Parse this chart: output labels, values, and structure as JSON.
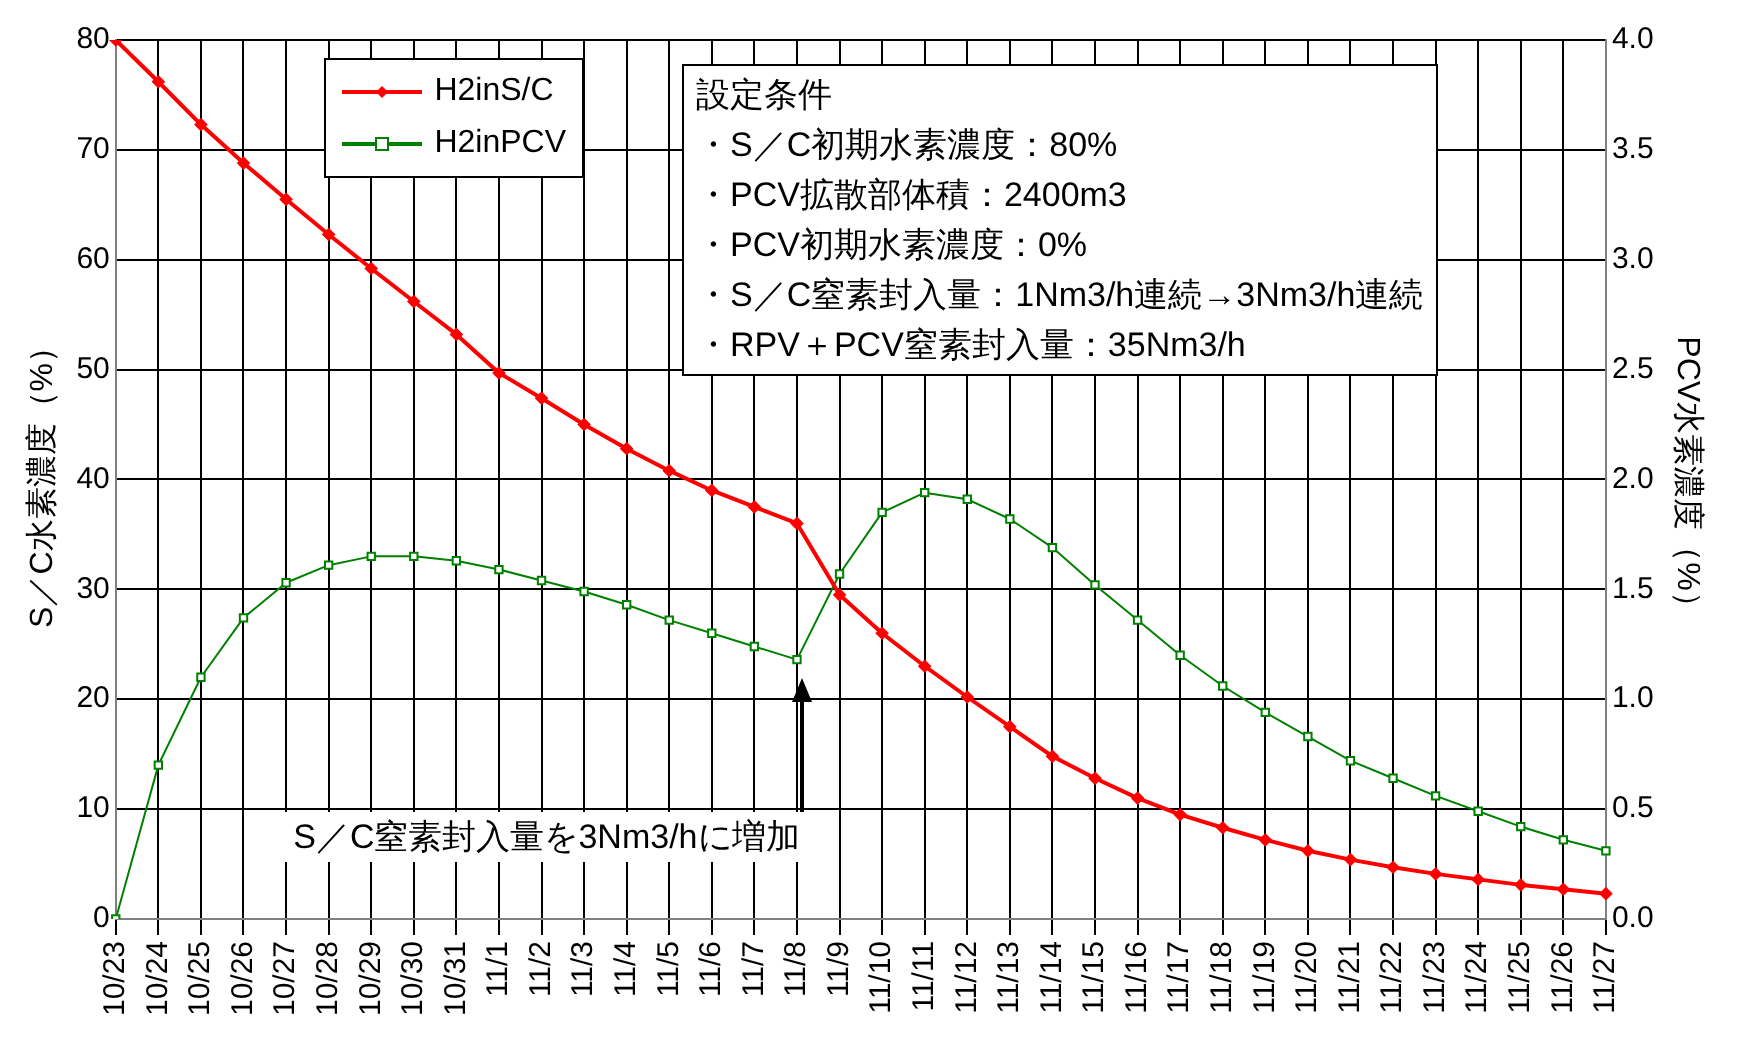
{
  "chart_data": {
    "type": "line",
    "categories": [
      "10/23",
      "10/24",
      "10/25",
      "10/26",
      "10/27",
      "10/28",
      "10/29",
      "10/30",
      "10/31",
      "11/1",
      "11/2",
      "11/3",
      "11/4",
      "11/5",
      "11/6",
      "11/7",
      "11/8",
      "11/9",
      "11/10",
      "11/11",
      "11/12",
      "11/13",
      "11/14",
      "11/15",
      "11/16",
      "11/17",
      "11/18",
      "11/19",
      "11/20",
      "11/21",
      "11/22",
      "11/23",
      "11/24",
      "11/25",
      "11/26",
      "11/27"
    ],
    "series": [
      {
        "name": "H2inS/C",
        "color": "#ff0000",
        "marker": "diamond",
        "values": [
          80,
          76.2,
          72.3,
          68.8,
          65.5,
          62.3,
          59.2,
          56.2,
          53.2,
          49.7,
          47.4,
          45,
          42.8,
          40.8,
          39,
          37.5,
          36,
          29.5,
          26,
          23,
          20.2,
          17.5,
          14.8,
          12.8,
          11,
          9.5,
          8.3,
          7.2,
          6.2,
          5.4,
          4.7,
          4.1,
          3.6,
          3.1,
          2.7,
          2.3
        ]
      },
      {
        "name": "H2inPCV",
        "color": "#008000",
        "marker": "square",
        "axis": "y2",
        "values": [
          0,
          0.7,
          1.1,
          1.37,
          1.53,
          1.61,
          1.65,
          1.65,
          1.63,
          1.59,
          1.54,
          1.49,
          1.43,
          1.36,
          1.3,
          1.24,
          1.18,
          1.57,
          1.85,
          1.94,
          1.91,
          1.82,
          1.69,
          1.52,
          1.36,
          1.2,
          1.06,
          0.94,
          0.83,
          0.72,
          0.64,
          0.56,
          0.49,
          0.42,
          0.36,
          0.31
        ]
      }
    ],
    "ylabel": "S／C水素濃度（%）",
    "y2label": "PCV水素濃度（%）",
    "ylim": [
      0,
      80
    ],
    "yticks": [
      0,
      10,
      20,
      30,
      40,
      50,
      60,
      70,
      80
    ],
    "y2lim": [
      0,
      4
    ],
    "y2ticks": [
      {
        "value": 0,
        "label": "0.0"
      },
      {
        "value": 0.5,
        "label": "0.5"
      },
      {
        "value": 1,
        "label": "1.0"
      },
      {
        "value": 1.5,
        "label": "1.5"
      },
      {
        "value": 2,
        "label": "2.0"
      },
      {
        "value": 2.5,
        "label": "2.5"
      },
      {
        "value": 3,
        "label": "3.0"
      },
      {
        "value": 3.5,
        "label": "3.5"
      },
      {
        "value": 4,
        "label": "4.0"
      }
    ],
    "grid": true,
    "legend": "top left",
    "line_style": "solid",
    "annotations": [
      "設定条件",
      "・S／C初期水素濃度：80%",
      "・PCV拡散部体積：2400m3",
      "・PCV初期水素濃度：0%",
      "・S／C窒素封入量：1Nm3/h連続→3Nm3/h連続",
      "・RPV＋PCV窒素封入量：35Nm3/h",
      "S／C窒素封入量を3Nm3/hに増加"
    ]
  }
}
